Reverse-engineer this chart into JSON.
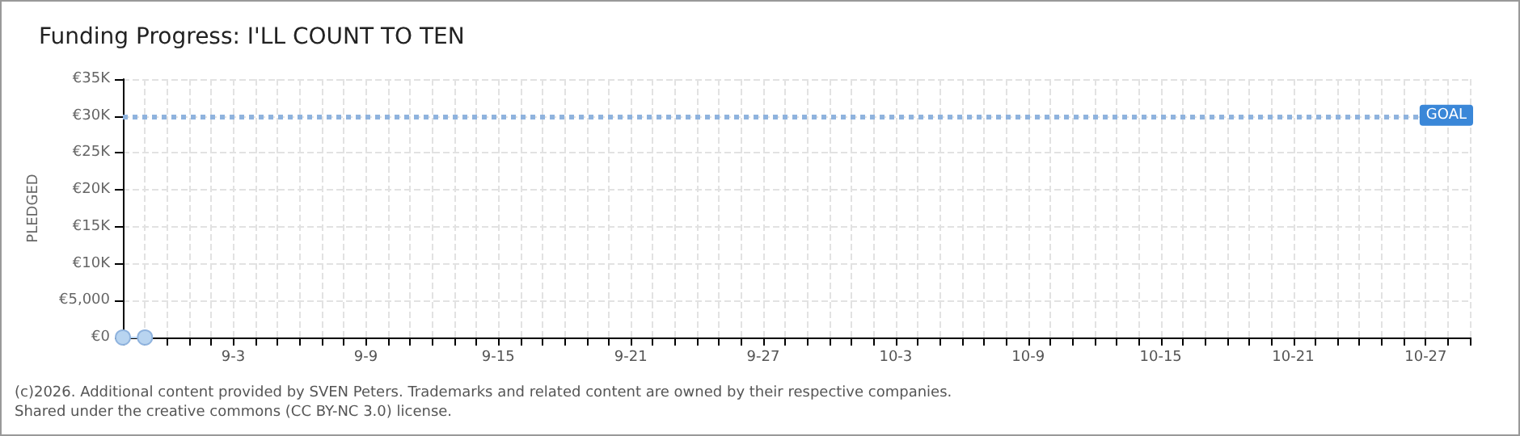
{
  "chart_data": {
    "type": "line",
    "title": "Funding Progress: I'LL COUNT TO TEN",
    "ylabel": "PLEDGED",
    "x": [
      "--08-29",
      "--08-30"
    ],
    "series": [
      {
        "color": "#b8d4f0",
        "values": [
          0,
          0
        ]
      }
    ],
    "marker": "circle",
    "xlim": [
      "--08-29",
      "--10-29"
    ],
    "xticks": [
      {
        "value": "--08-29",
        "label": null
      },
      {
        "value": "--08-30",
        "label": null
      },
      {
        "value": "--08-31",
        "label": null
      },
      {
        "value": "--09-01",
        "label": null
      },
      {
        "value": "--09-02",
        "label": null
      },
      {
        "value": "--09-03",
        "label": "9-3"
      },
      {
        "value": "--09-04",
        "label": null
      },
      {
        "value": "--09-05",
        "label": null
      },
      {
        "value": "--09-06",
        "label": null
      },
      {
        "value": "--09-07",
        "label": null
      },
      {
        "value": "--09-08",
        "label": null
      },
      {
        "value": "--09-09",
        "label": "9-9"
      },
      {
        "value": "--09-10",
        "label": null
      },
      {
        "value": "--09-11",
        "label": null
      },
      {
        "value": "--09-12",
        "label": null
      },
      {
        "value": "--09-13",
        "label": null
      },
      {
        "value": "--09-14",
        "label": null
      },
      {
        "value": "--09-15",
        "label": "9-15"
      },
      {
        "value": "--09-16",
        "label": null
      },
      {
        "value": "--09-17",
        "label": null
      },
      {
        "value": "--09-18",
        "label": null
      },
      {
        "value": "--09-19",
        "label": null
      },
      {
        "value": "--09-20",
        "label": null
      },
      {
        "value": "--09-21",
        "label": "9-21"
      },
      {
        "value": "--09-22",
        "label": null
      },
      {
        "value": "--09-23",
        "label": null
      },
      {
        "value": "--09-24",
        "label": null
      },
      {
        "value": "--09-25",
        "label": null
      },
      {
        "value": "--09-26",
        "label": null
      },
      {
        "value": "--09-27",
        "label": "9-27"
      },
      {
        "value": "--09-28",
        "label": null
      },
      {
        "value": "--09-29",
        "label": null
      },
      {
        "value": "--09-30",
        "label": null
      },
      {
        "value": "--10-01",
        "label": null
      },
      {
        "value": "--10-02",
        "label": null
      },
      {
        "value": "--10-03",
        "label": "10-3"
      },
      {
        "value": "--10-04",
        "label": null
      },
      {
        "value": "--10-05",
        "label": null
      },
      {
        "value": "--10-06",
        "label": null
      },
      {
        "value": "--10-07",
        "label": null
      },
      {
        "value": "--10-08",
        "label": null
      },
      {
        "value": "--10-09",
        "label": "10-9"
      },
      {
        "value": "--10-10",
        "label": null
      },
      {
        "value": "--10-11",
        "label": null
      },
      {
        "value": "--10-12",
        "label": null
      },
      {
        "value": "--10-13",
        "label": null
      },
      {
        "value": "--10-14",
        "label": null
      },
      {
        "value": "--10-15",
        "label": "10-15"
      },
      {
        "value": "--10-16",
        "label": null
      },
      {
        "value": "--10-17",
        "label": null
      },
      {
        "value": "--10-18",
        "label": null
      },
      {
        "value": "--10-19",
        "label": null
      },
      {
        "value": "--10-20",
        "label": null
      },
      {
        "value": "--10-21",
        "label": "10-21"
      },
      {
        "value": "--10-22",
        "label": null
      },
      {
        "value": "--10-23",
        "label": null
      },
      {
        "value": "--10-24",
        "label": null
      },
      {
        "value": "--10-25",
        "label": null
      },
      {
        "value": "--10-26",
        "label": null
      },
      {
        "value": "--10-27",
        "label": "10-27"
      },
      {
        "value": "--10-28",
        "label": null
      },
      {
        "value": "--10-29",
        "label": null
      }
    ],
    "ylim": [
      0,
      35000
    ],
    "yticks": [
      {
        "value": 0,
        "label": "€0"
      },
      {
        "value": 5000,
        "label": "€5,000"
      },
      {
        "value": 10000,
        "label": "€10K"
      },
      {
        "value": 15000,
        "label": "€15K"
      },
      {
        "value": 20000,
        "label": "€20K"
      },
      {
        "value": 25000,
        "label": "€25K"
      },
      {
        "value": 30000,
        "label": "€30K"
      },
      {
        "value": 35000,
        "label": "€35K"
      }
    ],
    "grid": true,
    "ref_lines": [
      {
        "axis": "y",
        "value": 30000,
        "label": "GOAL",
        "color": "#8fb3de",
        "line_style": "dotted"
      }
    ],
    "annotations": [
      "(c)2026. Additional content provided by SVEN Peters. Trademarks and related content are owned by their respective companies.",
      "Shared under the creative commons (CC BY-NC 3.0) license."
    ]
  }
}
